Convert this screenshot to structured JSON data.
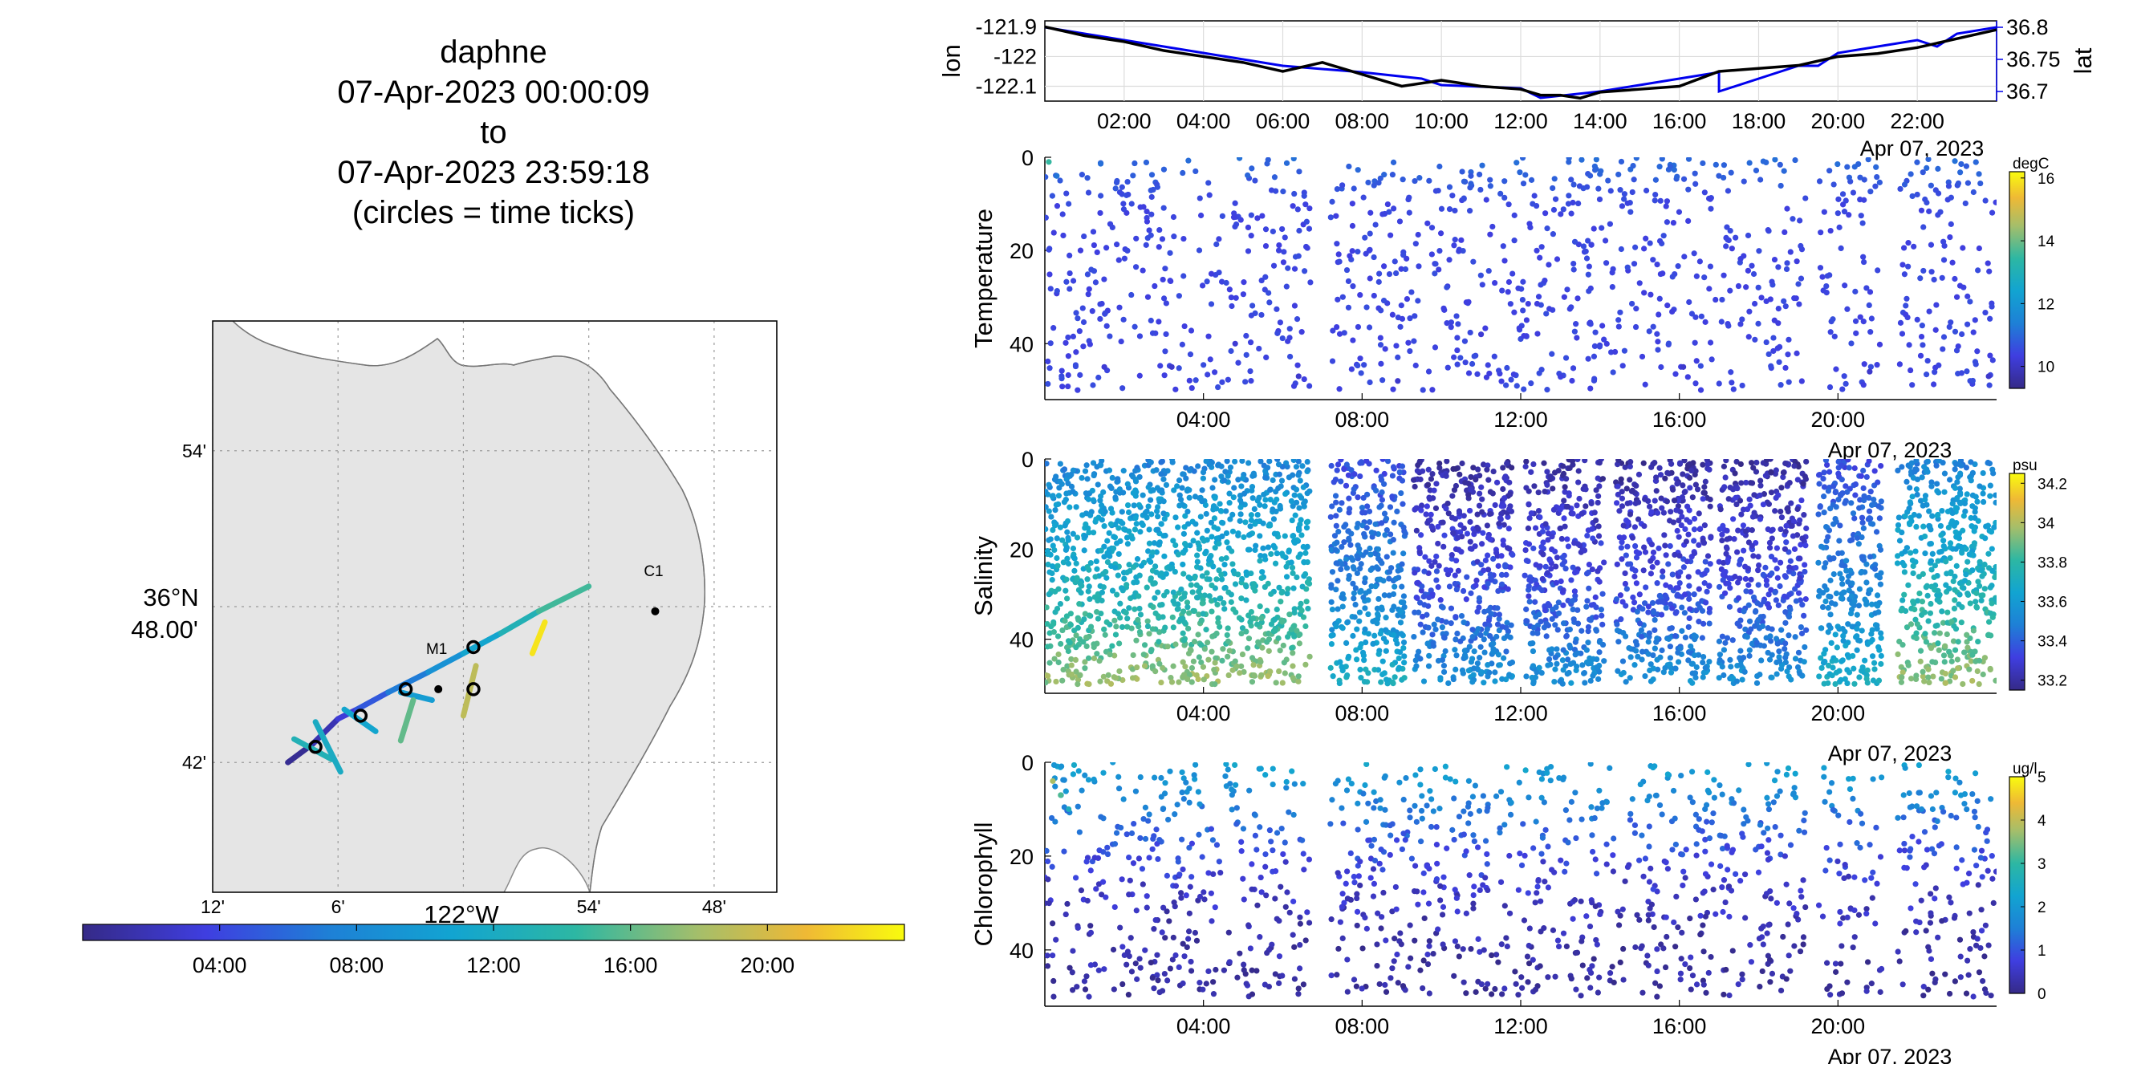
{
  "title": {
    "lines": [
      "daphne",
      "07-Apr-2023 00:00:09",
      "to",
      "07-Apr-2023 23:59:18",
      "(circles = time ticks)"
    ]
  },
  "map": {
    "lon_min": -122.2,
    "lon_max": -121.75,
    "lat_min": 36.6167,
    "lat_max": 36.9833,
    "lon_ticks": [
      {
        "value": -122.2,
        "label": "12'"
      },
      {
        "value": -122.1,
        "label": "6'"
      },
      {
        "value": -122.0,
        "label": "122°W"
      },
      {
        "value": -121.9,
        "label": "54'"
      },
      {
        "value": -121.8,
        "label": "48'"
      }
    ],
    "lat_ticks": [
      {
        "value": 36.9,
        "label": "54'"
      },
      {
        "value": 36.8,
        "label": "36°N 48.00'"
      },
      {
        "value": 36.7,
        "label": "42'"
      }
    ],
    "lon_axis_label": "122°W",
    "lat_axis_label_top": "36°N",
    "lat_axis_label_bottom": "48.00'",
    "stations": [
      {
        "name": "M1",
        "lon": -122.02,
        "lat": 36.747
      },
      {
        "name": "C1",
        "lon": -121.847,
        "lat": 36.797
      }
    ],
    "track": [
      {
        "lon": -122.14,
        "lat": 36.7,
        "hour": 0
      },
      {
        "lon": -122.12,
        "lat": 36.712,
        "hour": 1
      },
      {
        "lon": -122.1,
        "lat": 36.728,
        "hour": 2.5
      },
      {
        "lon": -122.085,
        "lat": 36.734,
        "hour": 4
      },
      {
        "lon": -122.06,
        "lat": 36.745,
        "hour": 6
      },
      {
        "lon": -122.028,
        "lat": 36.758,
        "hour": 8
      },
      {
        "lon": -122.0,
        "lat": 36.77,
        "hour": 10
      },
      {
        "lon": -121.97,
        "lat": 36.783,
        "hour": 12
      },
      {
        "lon": -121.94,
        "lat": 36.797,
        "hour": 14
      },
      {
        "lon": -121.9,
        "lat": 36.813,
        "hour": 16
      }
    ],
    "yo_segments": [
      {
        "lon1": -122.135,
        "lat1": 36.715,
        "lon2": -122.105,
        "lat2": 36.702,
        "hour": 13
      },
      {
        "lon1": -122.118,
        "lat1": 36.726,
        "lon2": -122.098,
        "lat2": 36.694,
        "hour": 12
      },
      {
        "lon1": -122.095,
        "lat1": 36.734,
        "lon2": -122.07,
        "lat2": 36.72,
        "hour": 11
      },
      {
        "lon1": -122.05,
        "lat1": 36.745,
        "lon2": -122.025,
        "lat2": 36.74,
        "hour": 10
      },
      {
        "lon1": -122.04,
        "lat1": 36.74,
        "lon2": -122.05,
        "lat2": 36.714,
        "hour": 16
      },
      {
        "lon1": -121.99,
        "lat1": 36.762,
        "lon2": -122.0,
        "lat2": 36.73,
        "hour": 19
      },
      {
        "lon1": -121.945,
        "lat1": 36.77,
        "lon2": -121.935,
        "lat2": 36.79,
        "hour": 23
      }
    ],
    "time_circles": [
      {
        "lon": -122.118,
        "lat": 36.71
      },
      {
        "lon": -122.082,
        "lat": 36.73
      },
      {
        "lon": -122.046,
        "lat": 36.747
      },
      {
        "lon": -121.992,
        "lat": 36.774
      },
      {
        "lon": -121.992,
        "lat": 36.747
      }
    ],
    "colorbar": {
      "ticks": [
        {
          "hour": 4,
          "label": "04:00"
        },
        {
          "hour": 8,
          "label": "08:00"
        },
        {
          "hour": 12,
          "label": "12:00"
        },
        {
          "hour": 16,
          "label": "16:00"
        },
        {
          "hour": 20,
          "label": "20:00"
        }
      ]
    }
  },
  "chart_data": [
    {
      "type": "line",
      "ylabel": "lon",
      "ylabel_right": "lat",
      "xlabel_date": "Apr 07, 2023",
      "xlim": [
        0,
        24
      ],
      "x_ticks": [
        "02:00",
        "04:00",
        "06:00",
        "08:00",
        "10:00",
        "12:00",
        "14:00",
        "16:00",
        "18:00",
        "20:00",
        "22:00"
      ],
      "x_tick_hours": [
        2,
        4,
        6,
        8,
        10,
        12,
        14,
        16,
        18,
        20,
        22
      ],
      "ylim": [
        -122.15,
        -121.88
      ],
      "y_ticks": [
        "-121.9",
        "-122",
        "-122.1"
      ],
      "y_tick_values": [
        -121.9,
        -122,
        -122.1
      ],
      "y2lim": [
        36.685,
        36.81
      ],
      "y2_ticks": [
        "36.8",
        "36.75",
        "36.7"
      ],
      "y2_tick_values": [
        36.8,
        36.75,
        36.7
      ],
      "series": [
        {
          "name": "lon",
          "x": [
            0,
            1,
            2,
            3,
            4,
            5,
            6,
            7,
            8,
            9,
            10,
            11,
            12,
            12.5,
            13,
            13.5,
            14,
            15,
            16,
            17,
            18,
            19,
            20,
            21,
            22,
            23,
            24
          ],
          "y": [
            -121.9,
            -121.93,
            -121.95,
            -121.98,
            -122.0,
            -122.02,
            -122.05,
            -122.02,
            -122.06,
            -122.1,
            -122.08,
            -122.1,
            -122.11,
            -122.13,
            -122.13,
            -122.14,
            -122.12,
            -122.11,
            -122.1,
            -122.05,
            -122.04,
            -122.03,
            -122.0,
            -121.99,
            -121.97,
            -121.94,
            -121.91
          ]
        },
        {
          "name": "lat",
          "x": [
            0,
            2,
            4,
            6,
            8,
            9.5,
            10,
            12,
            12.5,
            14,
            15,
            16,
            17,
            17,
            19,
            19.5,
            20,
            21,
            22,
            22.5,
            23,
            24
          ],
          "y": [
            36.8,
            36.78,
            36.76,
            36.74,
            36.73,
            36.72,
            36.71,
            36.705,
            36.69,
            36.7,
            36.71,
            36.72,
            36.73,
            36.7,
            36.74,
            36.74,
            36.76,
            36.77,
            36.78,
            36.77,
            36.79,
            36.8
          ]
        }
      ]
    },
    {
      "type": "scatter",
      "ylabel": "Temperature",
      "units": "degC",
      "xlabel_date": "Apr 07, 2023",
      "xlim": [
        0,
        24
      ],
      "x_ticks": [
        "04:00",
        "08:00",
        "12:00",
        "16:00",
        "20:00"
      ],
      "x_tick_hours": [
        4,
        8,
        12,
        16,
        20
      ],
      "ylim": [
        0,
        52
      ],
      "y_reversed": true,
      "y_ticks": [
        "0",
        "20",
        "40"
      ],
      "y_tick_values": [
        0,
        20,
        40
      ],
      "clim": [
        9.3,
        16.2
      ],
      "colorbar_ticks": [
        "16",
        "14",
        "12",
        "10"
      ],
      "colorbar_tick_values": [
        16,
        14,
        12,
        10
      ],
      "gaps_hours": [
        [
          6.7,
          7.2
        ],
        [
          19.2,
          19.5
        ],
        [
          21.1,
          21.5
        ]
      ],
      "points": [
        {
          "hour": 0.1,
          "depth": 1,
          "value": 13.5
        },
        {
          "hour": 0.3,
          "depth": 4,
          "value": 11.2
        },
        {
          "hour": 0.6,
          "depth": 10,
          "value": 10.6
        },
        {
          "hour": 0.9,
          "depth": 20,
          "value": 10.3
        },
        {
          "hour": 1.2,
          "depth": 33,
          "value": 10.4
        },
        {
          "hour": 1.5,
          "depth": 45,
          "value": 10.2
        },
        {
          "hour": 2.1,
          "depth": 8,
          "value": 10.5
        },
        {
          "hour": 2.6,
          "depth": 30,
          "value": 10.3
        },
        {
          "hour": 3.2,
          "depth": 45,
          "value": 10.1
        },
        {
          "hour": 3.8,
          "depth": 3,
          "value": 10.8
        },
        {
          "hour": 4.2,
          "depth": 25,
          "value": 10.3
        },
        {
          "hour": 4.8,
          "depth": 40,
          "value": 10.2
        },
        {
          "hour": 5.3,
          "depth": 5,
          "value": 10.6
        },
        {
          "hour": 5.9,
          "depth": 20,
          "value": 10.4
        },
        {
          "hour": 6.4,
          "depth": 47,
          "value": 10.1
        },
        {
          "hour": 7.5,
          "depth": 6,
          "value": 10.5
        },
        {
          "hour": 8.2,
          "depth": 26,
          "value": 10.3
        },
        {
          "hour": 8.9,
          "depth": 48,
          "value": 10.1
        },
        {
          "hour": 10.2,
          "depth": 22,
          "value": 10.4
        },
        {
          "hour": 11.0,
          "depth": 38,
          "value": 10.2
        },
        {
          "hour": 12.3,
          "depth": 10,
          "value": 10.6
        },
        {
          "hour": 13.1,
          "depth": 30,
          "value": 10.3
        },
        {
          "hour": 14.2,
          "depth": 5,
          "value": 10.8
        },
        {
          "hour": 15.0,
          "depth": 27,
          "value": 10.4
        },
        {
          "hour": 16.1,
          "depth": 45,
          "value": 10.1
        },
        {
          "hour": 17.2,
          "depth": 15,
          "value": 10.5
        },
        {
          "hour": 18.4,
          "depth": 35,
          "value": 10.3
        },
        {
          "hour": 20.0,
          "depth": 12,
          "value": 10.5
        },
        {
          "hour": 20.8,
          "depth": 46,
          "value": 10.1
        },
        {
          "hour": 22.0,
          "depth": 8,
          "value": 10.6
        },
        {
          "hour": 23.0,
          "depth": 30,
          "value": 10.3
        },
        {
          "hour": 23.8,
          "depth": 47,
          "value": 10.1
        }
      ]
    },
    {
      "type": "scatter",
      "ylabel": "Salinity",
      "units": "psu",
      "xlabel_date": "Apr 07, 2023",
      "xlim": [
        0,
        24
      ],
      "x_ticks": [
        "04:00",
        "08:00",
        "12:00",
        "16:00",
        "20:00"
      ],
      "x_tick_hours": [
        4,
        8,
        12,
        16,
        20
      ],
      "ylim": [
        0,
        52
      ],
      "y_reversed": true,
      "y_ticks": [
        "0",
        "20",
        "40"
      ],
      "y_tick_values": [
        0,
        20,
        40
      ],
      "clim": [
        33.15,
        34.25
      ],
      "colorbar_ticks": [
        "34.2",
        "34",
        "33.8",
        "33.6",
        "33.4",
        "33.2"
      ],
      "colorbar_tick_values": [
        34.2,
        34.0,
        33.8,
        33.6,
        33.4,
        33.2
      ],
      "gaps_hours": [
        [
          6.7,
          7.2
        ],
        [
          9.1,
          9.3
        ],
        [
          11.8,
          12.1
        ],
        [
          14.1,
          14.4
        ],
        [
          16.8,
          17.0
        ],
        [
          19.2,
          19.5
        ],
        [
          21.1,
          21.5
        ]
      ],
      "profile": [
        {
          "depth": 2,
          "value": 33.5
        },
        {
          "depth": 10,
          "value": 33.6
        },
        {
          "depth": 20,
          "value": 33.65
        },
        {
          "depth": 30,
          "value": 33.75
        },
        {
          "depth": 40,
          "value": 33.85
        },
        {
          "depth": 48,
          "value": 33.95
        }
      ],
      "fresh_hours": [
        [
          9.3,
          19.2
        ]
      ],
      "fresh_profile": [
        {
          "depth": 2,
          "value": 33.2
        },
        {
          "depth": 10,
          "value": 33.25
        },
        {
          "depth": 20,
          "value": 33.3
        },
        {
          "depth": 30,
          "value": 33.35
        },
        {
          "depth": 40,
          "value": 33.45
        },
        {
          "depth": 48,
          "value": 33.55
        }
      ]
    },
    {
      "type": "scatter",
      "ylabel": "Chlorophyll",
      "units": "ug/l",
      "xlabel_date": "Apr 07, 2023",
      "xlim": [
        0,
        24
      ],
      "x_ticks": [
        "04:00",
        "08:00",
        "12:00",
        "16:00",
        "20:00"
      ],
      "x_tick_hours": [
        4,
        8,
        12,
        16,
        20
      ],
      "ylim": [
        0,
        52
      ],
      "y_reversed": true,
      "y_ticks": [
        "0",
        "20",
        "40"
      ],
      "y_tick_values": [
        0,
        20,
        40
      ],
      "clim": [
        0,
        5
      ],
      "colorbar_ticks": [
        "5",
        "4",
        "3",
        "2",
        "1",
        "0"
      ],
      "colorbar_tick_values": [
        5,
        4,
        3,
        2,
        1,
        0
      ],
      "gaps_hours": [
        [
          6.7,
          7.2
        ],
        [
          19.2,
          19.5
        ],
        [
          21.1,
          21.5
        ]
      ],
      "profile": [
        {
          "depth": 1,
          "value": 2.0
        },
        {
          "depth": 8,
          "value": 1.5
        },
        {
          "depth": 15,
          "value": 1.0
        },
        {
          "depth": 25,
          "value": 0.5
        },
        {
          "depth": 35,
          "value": 0.25
        },
        {
          "depth": 48,
          "value": 0.1
        }
      ],
      "bloom_points": [
        {
          "hour": 0.2,
          "depth": 4,
          "value": 3.8
        },
        {
          "hour": 0.4,
          "depth": 7,
          "value": 3.2
        },
        {
          "hour": 0.6,
          "depth": 10,
          "value": 2.6
        }
      ]
    }
  ]
}
